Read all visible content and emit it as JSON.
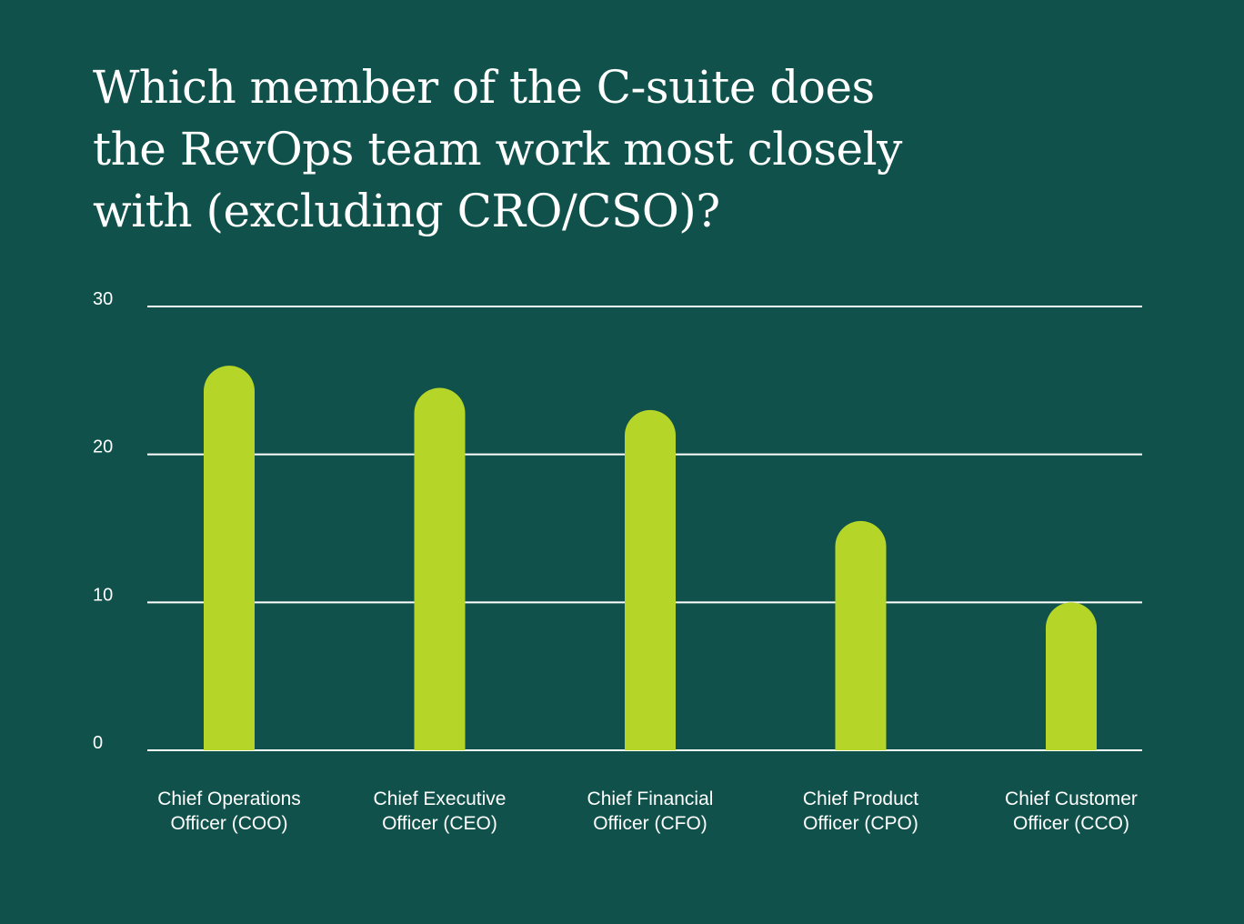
{
  "title_lines": [
    "Which member of the C-suite does",
    "the RevOps team work most closely",
    "with (excluding CRO/CSO)?"
  ],
  "colors": {
    "background": "#10524b",
    "bar": "#b5d629",
    "gridline": "#ffffff",
    "text": "#ffffff"
  },
  "chart_data": {
    "type": "bar",
    "title": "Which member of the C-suite does the RevOps team work most closely with (excluding CRO/CSO)?",
    "categories": [
      [
        "Chief Operations",
        "Officer (COO)"
      ],
      [
        "Chief Executive",
        "Officer (CEO)"
      ],
      [
        "Chief Financial",
        "Officer (CFO)"
      ],
      [
        "Chief Product",
        "Officer (CPO)"
      ],
      [
        "Chief Customer",
        "Officer (CCO)"
      ]
    ],
    "values": [
      26,
      24.5,
      23,
      15.5,
      10
    ],
    "yticks": [
      0,
      10,
      20,
      30
    ],
    "ylim": [
      0,
      30
    ],
    "grid": true,
    "legend": "none",
    "xlabel": "",
    "ylabel": ""
  }
}
